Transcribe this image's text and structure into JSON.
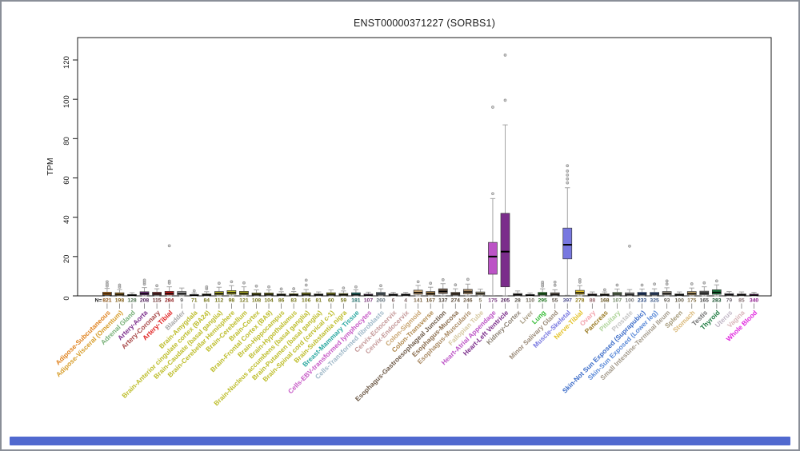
{
  "window": {
    "frame_border_color": "#8a8f98",
    "bottom_bar_color": "#5069cf",
    "panel_border_color": "#1a1a1a",
    "background_color": "#ffffff"
  },
  "chart_data": {
    "type": "box",
    "title": "ENST00000371227 (SORBS1)",
    "ylabel": "TPM",
    "ylim": [
      0,
      128
    ],
    "yticks": [
      0,
      20,
      40,
      60,
      80,
      100,
      120
    ],
    "grid": false,
    "legend": false,
    "n_prefix": "N=",
    "tissues": [
      {
        "label": "Adipose-Subcutaneous",
        "n": 821,
        "color": "#E0821E",
        "low": 0,
        "q1": 0.3,
        "med": 1.0,
        "q3": 1.9,
        "high": 3.8,
        "outliers": [
          5,
          6,
          7.2
        ]
      },
      {
        "label": "Adipose-Visceral (Omentum)",
        "n": 198,
        "color": "#D69C28",
        "low": 0,
        "q1": 0.2,
        "med": 0.8,
        "q3": 1.6,
        "high": 3.2,
        "outliers": [
          4.5,
          5.5
        ]
      },
      {
        "label": "Adrenal Gland",
        "n": 128,
        "color": "#77B077",
        "low": 0,
        "q1": 0.1,
        "med": 0.3,
        "q3": 0.7,
        "high": 1.6,
        "outliers": []
      },
      {
        "label": "Artery-Aorta",
        "n": 208,
        "color": "#7B2D8B",
        "low": 0,
        "q1": 0.5,
        "med": 1.2,
        "q3": 2.1,
        "high": 4.2,
        "outliers": [
          6,
          7,
          8
        ]
      },
      {
        "label": "Artery-Coronary",
        "n": 115,
        "color": "#A84848",
        "low": 0,
        "q1": 0.4,
        "med": 1.0,
        "q3": 1.9,
        "high": 3.6,
        "outliers": [
          5.2
        ]
      },
      {
        "label": "Artery-Tibial",
        "n": 284,
        "color": "#E02020",
        "low": 0,
        "q1": 0.5,
        "med": 1.3,
        "q3": 2.3,
        "high": 4.6,
        "outliers": [
          6.5,
          7.5,
          25.5
        ]
      },
      {
        "label": "Bladder",
        "n": 9,
        "color": "#A8A8A8",
        "low": 0,
        "q1": 0.5,
        "med": 1.2,
        "q3": 2.2,
        "high": 4.0,
        "outliers": []
      },
      {
        "label": "Brain-Amygdala",
        "n": 71,
        "color": "#BDBD2A",
        "low": 0,
        "q1": 0.1,
        "med": 0.3,
        "q3": 0.7,
        "high": 1.5,
        "outliers": [
          2.6
        ]
      },
      {
        "label": "Brain-Anterior cingulate cortex (BA24)",
        "n": 84,
        "color": "#BDBD2A",
        "low": 0,
        "q1": 0.2,
        "med": 0.5,
        "q3": 1.0,
        "high": 2.1,
        "outliers": [
          3.6,
          4.6
        ]
      },
      {
        "label": "Brain-Caudate (basal ganglia)",
        "n": 112,
        "color": "#BDBD2A",
        "low": 0,
        "q1": 0.5,
        "med": 1.2,
        "q3": 2.2,
        "high": 4.4,
        "outliers": [
          6.4
        ]
      },
      {
        "label": "Brain-Cerebellar Hemisphere",
        "n": 98,
        "color": "#BDBD2A",
        "low": 0,
        "q1": 0.8,
        "med": 1.6,
        "q3": 2.7,
        "high": 5.2,
        "outliers": [
          7.2
        ]
      },
      {
        "label": "Brain-Cerebellum",
        "n": 121,
        "color": "#BDBD2A",
        "low": 0,
        "q1": 0.6,
        "med": 1.3,
        "q3": 2.3,
        "high": 4.6,
        "outliers": [
          6.6
        ]
      },
      {
        "label": "Brain-Cortex",
        "n": 108,
        "color": "#BDBD2A",
        "low": 0,
        "q1": 0.3,
        "med": 0.8,
        "q3": 1.5,
        "high": 3.0,
        "outliers": [
          5
        ]
      },
      {
        "label": "Brain-Frontal Cortex (BA9)",
        "n": 104,
        "color": "#BDBD2A",
        "low": 0,
        "q1": 0.3,
        "med": 0.8,
        "q3": 1.5,
        "high": 3.0,
        "outliers": [
          4.6
        ]
      },
      {
        "label": "Brain-Hippocampus",
        "n": 86,
        "color": "#BDBD2A",
        "low": 0,
        "q1": 0.2,
        "med": 0.5,
        "q3": 1.0,
        "high": 2.1,
        "outliers": [
          3.5
        ]
      },
      {
        "label": "Brain-Hypothalamus",
        "n": 83,
        "color": "#BDBD2A",
        "low": 0,
        "q1": 0.2,
        "med": 0.5,
        "q3": 1.1,
        "high": 2.2,
        "outliers": [
          3.6
        ]
      },
      {
        "label": "Brain-Nucleus accumbens (basal ganglia)",
        "n": 106,
        "color": "#BDBD2A",
        "low": 0,
        "q1": 0.3,
        "med": 0.8,
        "q3": 1.6,
        "high": 3.2,
        "outliers": [
          5.5,
          8
        ]
      },
      {
        "label": "Brain-Putamen (basal ganglia)",
        "n": 81,
        "color": "#BDBD2A",
        "low": 0,
        "q1": 0.2,
        "med": 0.5,
        "q3": 1.0,
        "high": 2.0,
        "outliers": []
      },
      {
        "label": "Brain-Spinal cord (cervical c-1)",
        "n": 60,
        "color": "#BDBD2A",
        "low": 0,
        "q1": 0.3,
        "med": 0.8,
        "q3": 1.6,
        "high": 3.0,
        "outliers": []
      },
      {
        "label": "Brain-Substantia nigra",
        "n": 59,
        "color": "#BDBD2A",
        "low": 0,
        "q1": 0.2,
        "med": 0.6,
        "q3": 1.2,
        "high": 2.5,
        "outliers": [
          4
        ]
      },
      {
        "label": "Breast-Mammary Tissue",
        "n": 181,
        "color": "#2AA8A0",
        "low": 0,
        "q1": 0.3,
        "med": 0.8,
        "q3": 1.6,
        "high": 3.1,
        "outliers": [
          4.6
        ]
      },
      {
        "label": "Cells-EBV-transformed lymphocytes",
        "n": 107,
        "color": "#C659C6",
        "low": 0,
        "q1": 0.1,
        "med": 0.4,
        "q3": 0.9,
        "high": 1.9,
        "outliers": []
      },
      {
        "label": "Cells-Transformed fibroblasts",
        "n": 260,
        "color": "#9FB8C8",
        "low": 0,
        "q1": 0.4,
        "med": 1.0,
        "q3": 1.8,
        "high": 3.6,
        "outliers": [
          5.2
        ]
      },
      {
        "label": "Cervix-Ectocervix",
        "n": 6,
        "color": "#C49898",
        "low": 0,
        "q1": 0.2,
        "med": 0.5,
        "q3": 1.0,
        "high": 1.8,
        "outliers": []
      },
      {
        "label": "Cervix-Endocervix",
        "n": 4,
        "color": "#C49898",
        "low": 0,
        "q1": 0.2,
        "med": 0.5,
        "q3": 1.0,
        "high": 1.8,
        "outliers": []
      },
      {
        "label": "Colon-Sigmoid",
        "n": 141,
        "color": "#C8A470",
        "low": 0,
        "q1": 0.8,
        "med": 1.7,
        "q3": 2.9,
        "high": 5.3,
        "outliers": [
          7.2
        ]
      },
      {
        "label": "Colon-Transverse",
        "n": 167,
        "color": "#B08A50",
        "low": 0,
        "q1": 0.5,
        "med": 1.2,
        "q3": 2.2,
        "high": 4.4,
        "outliers": [
          6.4
        ]
      },
      {
        "label": "Esophagus-Gastroesophageal Junction",
        "n": 137,
        "color": "#6E5B49",
        "low": 0.1,
        "q1": 1.2,
        "med": 2.3,
        "q3": 3.6,
        "high": 6.2,
        "outliers": [
          8.2
        ]
      },
      {
        "label": "Esophagus-Mucosa",
        "n": 274,
        "color": "#8A6D4E",
        "low": 0,
        "q1": 0.4,
        "med": 1.0,
        "q3": 1.8,
        "high": 3.6,
        "outliers": [
          5.6
        ]
      },
      {
        "label": "Esophagus-Muscularis",
        "n": 246,
        "color": "#A98A64",
        "low": 0.1,
        "q1": 1.0,
        "med": 2.0,
        "q3": 3.3,
        "high": 6.0,
        "outliers": [
          8.4
        ]
      },
      {
        "label": "Fallopian Tube",
        "n": 5,
        "color": "#D5C8A0",
        "low": 0,
        "q1": 0.5,
        "med": 1.2,
        "q3": 2.0,
        "high": 3.4,
        "outliers": []
      },
      {
        "label": "Heart-Atrial Appendage",
        "n": 175,
        "color": "#BC53C6",
        "low": 0.2,
        "q1": 11,
        "med": 20,
        "q3": 27.2,
        "high": 49.5,
        "outliers": [
          52,
          96
        ]
      },
      {
        "label": "Heart-Left Ventricle",
        "n": 205,
        "color": "#7B2D8B",
        "low": 0.1,
        "q1": 4.6,
        "med": 22.5,
        "q3": 42,
        "high": 87,
        "outliers": [
          99.5,
          122.5
        ]
      },
      {
        "label": "Kidney-Cortex",
        "n": 28,
        "color": "#8C8274",
        "low": 0,
        "q1": 0.2,
        "med": 0.6,
        "q3": 1.2,
        "high": 2.5,
        "outliers": []
      },
      {
        "label": "Liver",
        "n": 110,
        "color": "#A89C84",
        "low": 0,
        "q1": 0.1,
        "med": 0.3,
        "q3": 0.7,
        "high": 1.5,
        "outliers": []
      },
      {
        "label": "Lung",
        "n": 295,
        "color": "#33BB33",
        "low": 0,
        "q1": 0.4,
        "med": 1.0,
        "q3": 1.8,
        "high": 3.6,
        "outliers": [
          5,
          6,
          7
        ]
      },
      {
        "label": "Minor Salivary Gland",
        "n": 55,
        "color": "#9C8C7A",
        "low": 0,
        "q1": 0.3,
        "med": 0.8,
        "q3": 1.6,
        "high": 3.1,
        "outliers": [
          5.4,
          7
        ]
      },
      {
        "label": "Muscle-Skeletal",
        "n": 397,
        "color": "#7878E0",
        "low": 0.3,
        "q1": 18.8,
        "med": 26,
        "q3": 34.5,
        "high": 55,
        "outliers": [
          57.5,
          59.5,
          61.5,
          63.5,
          66.2
        ]
      },
      {
        "label": "Nerve-Tibial",
        "n": 278,
        "color": "#E3C229",
        "low": 0,
        "q1": 0.8,
        "med": 1.6,
        "q3": 2.8,
        "high": 5.2,
        "outliers": [
          7,
          8.2
        ]
      },
      {
        "label": "Ovary",
        "n": 88,
        "color": "#F2A3AC",
        "low": 0,
        "q1": 0.2,
        "med": 0.5,
        "q3": 1.0,
        "high": 2.0,
        "outliers": []
      },
      {
        "label": "Pancreas",
        "n": 168,
        "color": "#9A7B24",
        "low": 0,
        "q1": 0.2,
        "med": 0.5,
        "q3": 1.0,
        "high": 2.0,
        "outliers": [
          3.1
        ]
      },
      {
        "label": "Pituitary",
        "n": 107,
        "color": "#AFD49A",
        "low": 0,
        "q1": 0.4,
        "med": 1.0,
        "q3": 1.8,
        "high": 3.5,
        "outliers": [
          5.5
        ]
      },
      {
        "label": "Prostate",
        "n": 100,
        "color": "#C4C4C4",
        "low": 0,
        "q1": 0.3,
        "med": 0.8,
        "q3": 1.6,
        "high": 3.2,
        "outliers": [
          25.3
        ]
      },
      {
        "label": "Skin-Not Sun Exposed (Suprapubic)",
        "n": 233,
        "color": "#3A6BC8",
        "low": 0,
        "q1": 0.4,
        "med": 1.0,
        "q3": 1.8,
        "high": 3.5,
        "outliers": [
          5.5
        ]
      },
      {
        "label": "Skin-Sun Exposed (Lower leg)",
        "n": 325,
        "color": "#5B8AD8",
        "low": 0,
        "q1": 0.4,
        "med": 1.0,
        "q3": 1.8,
        "high": 3.6,
        "outliers": [
          6
        ]
      },
      {
        "label": "Small Intestine-Terminal Ileum",
        "n": 93,
        "color": "#A39A8B",
        "low": 0,
        "q1": 0.5,
        "med": 1.2,
        "q3": 2.2,
        "high": 4.1,
        "outliers": [
          6,
          7.6
        ]
      },
      {
        "label": "Spleen",
        "n": 100,
        "color": "#A39878",
        "low": 0,
        "q1": 0.2,
        "med": 0.5,
        "q3": 1.0,
        "high": 2.0,
        "outliers": []
      },
      {
        "label": "Stomach",
        "n": 175,
        "color": "#D9B878",
        "low": 0,
        "q1": 0.5,
        "med": 1.2,
        "q3": 2.2,
        "high": 4.0,
        "outliers": [
          6.1
        ]
      },
      {
        "label": "Testis",
        "n": 165,
        "color": "#6E6E6E",
        "low": 0,
        "q1": 0.6,
        "med": 1.4,
        "q3": 2.4,
        "high": 4.6,
        "outliers": [
          6.6
        ]
      },
      {
        "label": "Thyroid",
        "n": 283,
        "color": "#1E7A40",
        "low": 0,
        "q1": 0.8,
        "med": 1.8,
        "q3": 3.1,
        "high": 5.6,
        "outliers": [
          7.6
        ]
      },
      {
        "label": "Uterus",
        "n": 79,
        "color": "#BFB4C4",
        "low": 0,
        "q1": 0.2,
        "med": 0.6,
        "q3": 1.2,
        "high": 2.2,
        "outliers": []
      },
      {
        "label": "Vagina",
        "n": 85,
        "color": "#D8B4B8",
        "low": 0,
        "q1": 0.2,
        "med": 0.5,
        "q3": 1.0,
        "high": 2.0,
        "outliers": []
      },
      {
        "label": "Whole Blood",
        "n": 340,
        "color": "#E026DE",
        "low": 0,
        "q1": 0.1,
        "med": 0.4,
        "q3": 0.9,
        "high": 1.8,
        "outliers": []
      }
    ]
  }
}
